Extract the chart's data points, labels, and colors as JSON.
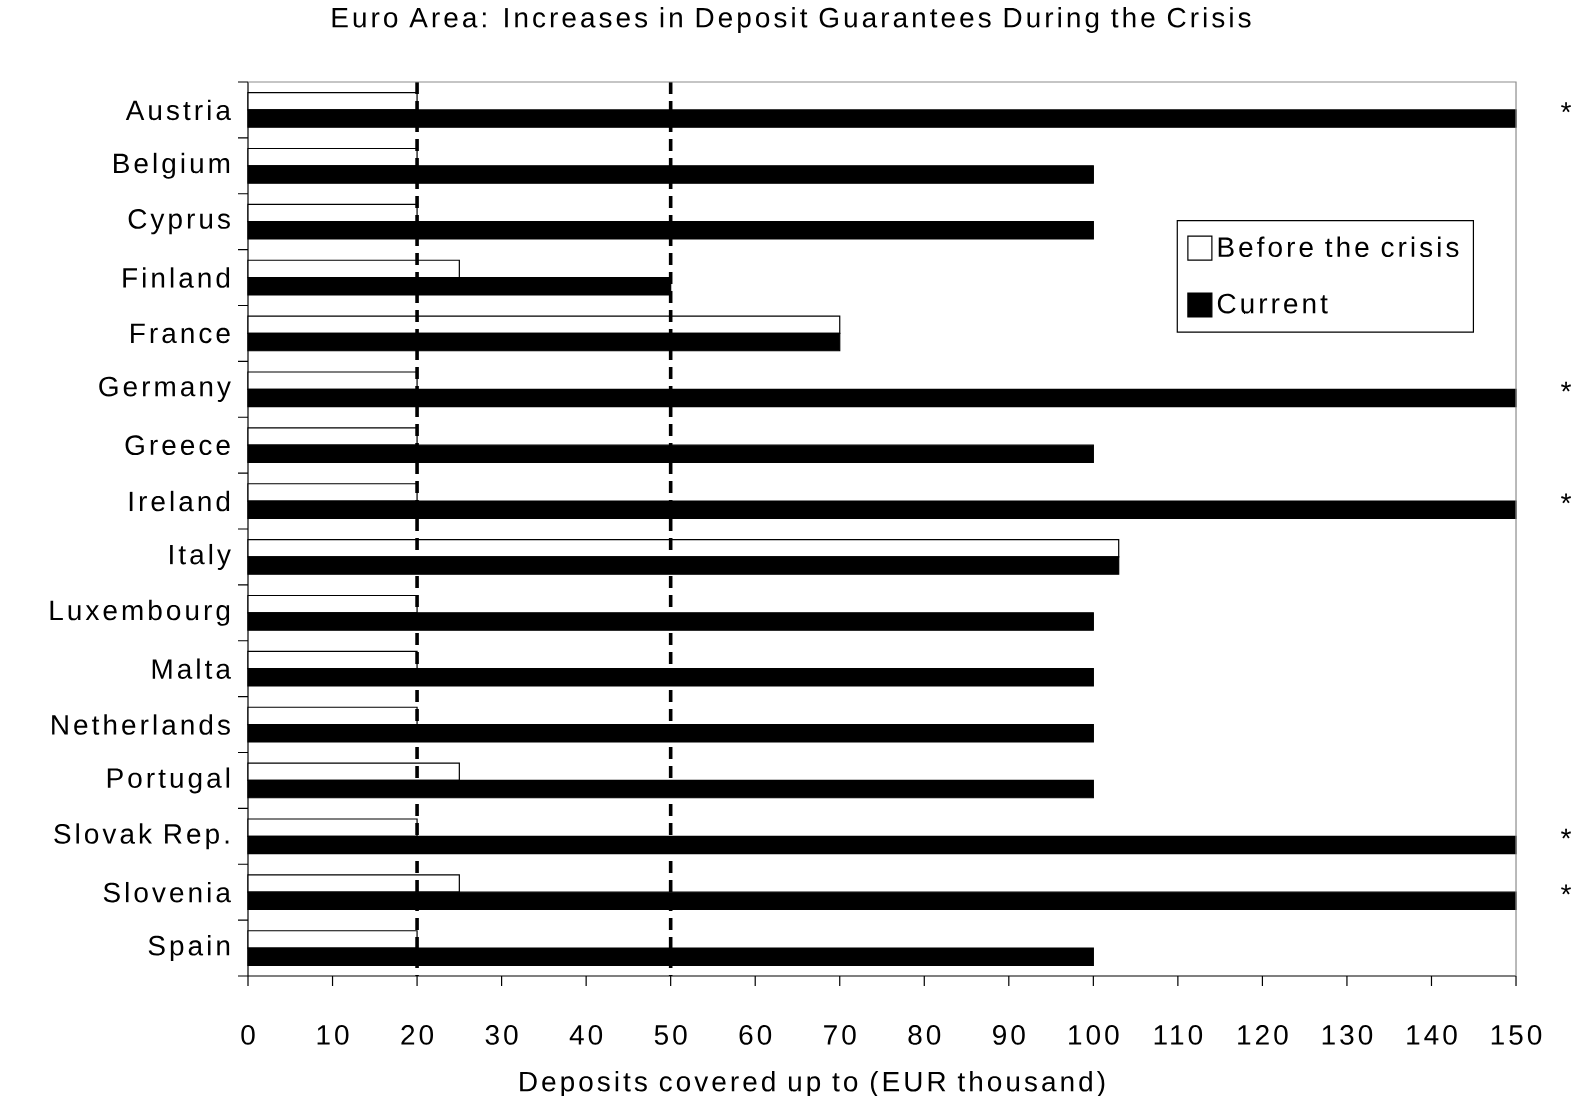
{
  "chart_data": {
    "type": "bar",
    "orientation": "horizontal",
    "title": "Euro Area: Increases in Deposit Guarantees During the Crisis",
    "xlabel": "Deposits covered up to (EUR thousand)",
    "categories": [
      "Austria",
      "Belgium",
      "Cyprus",
      "Finland",
      "France",
      "Germany",
      "Greece",
      "Ireland",
      "Italy",
      "Luxembourg",
      "Malta",
      "Netherlands",
      "Portugal",
      "Slovak Rep.",
      "Slovenia",
      "Spain"
    ],
    "series": [
      {
        "name": "Before the crisis",
        "color": "#ffffff",
        "values": [
          20,
          20,
          20,
          25,
          70,
          20,
          20,
          20,
          103,
          20,
          20,
          20,
          25,
          20,
          25,
          20
        ]
      },
      {
        "name": "Current",
        "color": "#000000",
        "values": [
          150,
          100,
          100,
          50,
          70,
          150,
          100,
          150,
          103,
          100,
          100,
          100,
          100,
          150,
          150,
          100
        ]
      }
    ],
    "xlim": [
      0,
      150
    ],
    "xticks": [
      0,
      10,
      20,
      30,
      40,
      50,
      60,
      70,
      80,
      90,
      100,
      110,
      120,
      130,
      140,
      150
    ],
    "legend": "top right",
    "ref_lines": [
      {
        "axis": "x",
        "value": 20,
        "line_style": "dashed",
        "color": "#000000"
      },
      {
        "axis": "x",
        "value": 50,
        "line_style": "dashed",
        "color": "#000000"
      }
    ],
    "annotations": [
      "*",
      "*",
      "*",
      "*",
      "*"
    ]
  }
}
